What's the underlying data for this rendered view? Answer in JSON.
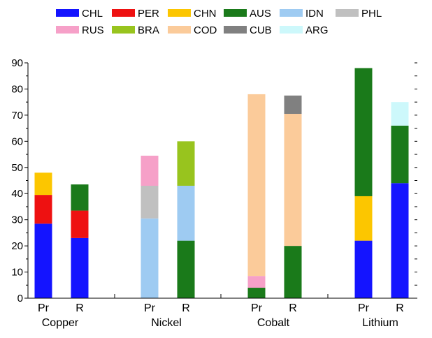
{
  "chart_data": {
    "type": "bar",
    "stacked": true,
    "ylim": [
      0,
      90
    ],
    "yticks": [
      0,
      10,
      20,
      30,
      40,
      50,
      60,
      70,
      80,
      90
    ],
    "legend": [
      {
        "code": "CHL",
        "color": "#1414ff"
      },
      {
        "code": "PER",
        "color": "#ee1111"
      },
      {
        "code": "CHN",
        "color": "#fcc600"
      },
      {
        "code": "AUS",
        "color": "#1a7a1a"
      },
      {
        "code": "IDN",
        "color": "#9ecbf2"
      },
      {
        "code": "PHL",
        "color": "#c0c0c0"
      },
      {
        "code": "RUS",
        "color": "#f6a0c8"
      },
      {
        "code": "BRA",
        "color": "#98c41e"
      },
      {
        "code": "COD",
        "color": "#fbcb9a"
      },
      {
        "code": "CUB",
        "color": "#808080"
      },
      {
        "code": "ARG",
        "color": "#cdf8fb"
      }
    ],
    "groups": [
      {
        "label": "Copper",
        "bars": [
          {
            "label": "Pr",
            "segments": [
              {
                "code": "CHL",
                "value": 28.5
              },
              {
                "code": "PER",
                "value": 11
              },
              {
                "code": "CHN",
                "value": 8.5
              }
            ]
          },
          {
            "label": "R",
            "segments": [
              {
                "code": "CHL",
                "value": 23
              },
              {
                "code": "PER",
                "value": 10.5
              },
              {
                "code": "AUS",
                "value": 10
              }
            ]
          }
        ]
      },
      {
        "label": "Nickel",
        "bars": [
          {
            "label": "Pr",
            "segments": [
              {
                "code": "IDN",
                "value": 30.5
              },
              {
                "code": "PHL",
                "value": 12.5
              },
              {
                "code": "RUS",
                "value": 11.5
              }
            ]
          },
          {
            "label": "R",
            "segments": [
              {
                "code": "AUS",
                "value": 22
              },
              {
                "code": "IDN",
                "value": 21
              },
              {
                "code": "BRA",
                "value": 17
              }
            ]
          }
        ]
      },
      {
        "label": "Cobalt",
        "bars": [
          {
            "label": "Pr",
            "segments": [
              {
                "code": "AUS",
                "value": 4
              },
              {
                "code": "RUS",
                "value": 4.5
              },
              {
                "code": "COD",
                "value": 69.5
              }
            ]
          },
          {
            "label": "R",
            "segments": [
              {
                "code": "AUS",
                "value": 20
              },
              {
                "code": "COD",
                "value": 50.5
              },
              {
                "code": "CUB",
                "value": 7
              }
            ]
          }
        ]
      },
      {
        "label": "Lithium",
        "bars": [
          {
            "label": "Pr",
            "segments": [
              {
                "code": "CHL",
                "value": 22
              },
              {
                "code": "CHN",
                "value": 17
              },
              {
                "code": "AUS",
                "value": 49
              }
            ]
          },
          {
            "label": "R",
            "segments": [
              {
                "code": "CHL",
                "value": 44
              },
              {
                "code": "AUS",
                "value": 22
              },
              {
                "code": "ARG",
                "value": 9
              }
            ]
          }
        ]
      }
    ]
  }
}
